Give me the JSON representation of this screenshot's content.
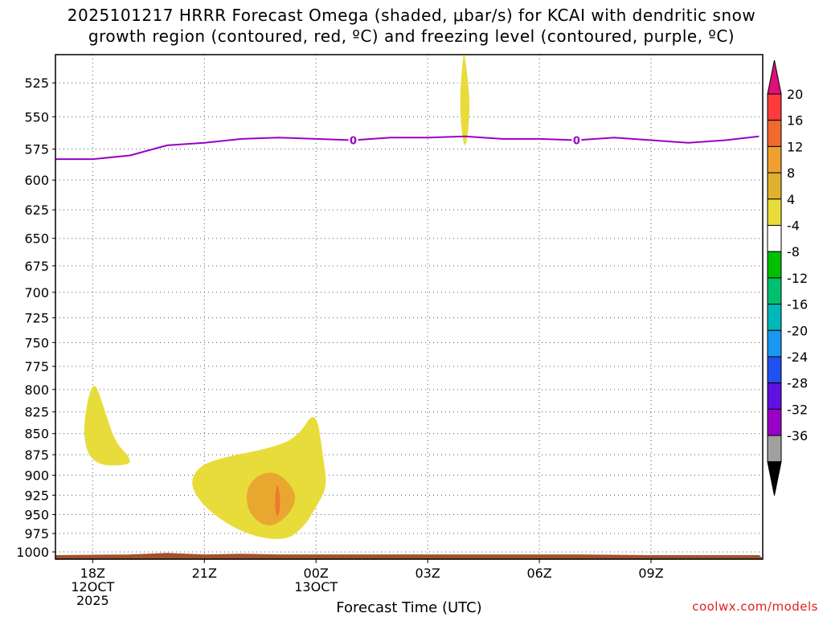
{
  "title": {
    "line1": "2025101217 HRRR Forecast Omega (shaded, μbar/s) for KCAI with dendritic snow",
    "line2": "growth region (contoured, red, ºC) and freezing level (contoured, purple, ºC)"
  },
  "credit": "coolwx.com/models",
  "colors": {
    "freezing_level": "#9a00c8",
    "terrain": "#a0522d",
    "omega_4_8": "#e8dc3a",
    "omega_8_12": "#e8a830",
    "omega_12_16": "#f07830"
  },
  "chart_data": {
    "type": "contour",
    "title": "2025101217 HRRR Forecast Omega (shaded, μbar/s) for KCAI with dendritic snow growth region (contoured, red, ºC) and freezing level (contoured, purple, ºC)",
    "xlabel": "Forecast Time (UTC)",
    "ylabel": "",
    "grid": true,
    "x_ticks": [
      {
        "hour": 18,
        "label": "18Z",
        "label2": "12OCT",
        "label3": "2025"
      },
      {
        "hour": 21,
        "label": "21Z",
        "label2": "",
        "label3": ""
      },
      {
        "hour": 24,
        "label": "00Z",
        "label2": "13OCT",
        "label3": ""
      },
      {
        "hour": 27,
        "label": "03Z",
        "label2": "",
        "label3": ""
      },
      {
        "hour": 30,
        "label": "06Z",
        "label2": "",
        "label3": ""
      },
      {
        "hour": 33,
        "label": "09Z",
        "label2": "",
        "label3": ""
      }
    ],
    "y_ticks": [
      "525",
      "550",
      "575",
      "600",
      "625",
      "650",
      "675",
      "700",
      "725",
      "750",
      "775",
      "800",
      "825",
      "850",
      "875",
      "900",
      "925",
      "950",
      "975",
      "1000"
    ],
    "ylim": [
      1010,
      505
    ],
    "colorbar": {
      "labels": [
        "20",
        "16",
        "12",
        "8",
        "4",
        "-4",
        "-8",
        "-12",
        "-16",
        "-20",
        "-24",
        "-28",
        "-32",
        "-36"
      ],
      "colors": [
        "#ff3a3a",
        "#f06a30",
        "#f0a030",
        "#e0b030",
        "#e8dc3a",
        "#ffffff",
        "#00c000",
        "#00c070",
        "#00b8b8",
        "#1898f0",
        "#2050f0",
        "#6010e0",
        "#9a00c8",
        "#a0a0a0"
      ],
      "top_arrow": "#e0107a",
      "bottom_arrow": "#000000"
    },
    "freezing_level": {
      "contour_value": "0",
      "points": [
        {
          "t": 17.0,
          "p": 583
        },
        {
          "t": 18.0,
          "p": 583
        },
        {
          "t": 19.0,
          "p": 580
        },
        {
          "t": 20.0,
          "p": 572
        },
        {
          "t": 21.0,
          "p": 570
        },
        {
          "t": 22.0,
          "p": 567
        },
        {
          "t": 23.0,
          "p": 566
        },
        {
          "t": 24.0,
          "p": 567
        },
        {
          "t": 25.0,
          "p": 568
        },
        {
          "t": 26.0,
          "p": 566
        },
        {
          "t": 27.0,
          "p": 566
        },
        {
          "t": 28.0,
          "p": 565
        },
        {
          "t": 29.0,
          "p": 567
        },
        {
          "t": 30.0,
          "p": 567
        },
        {
          "t": 31.0,
          "p": 568
        },
        {
          "t": 32.0,
          "p": 566
        },
        {
          "t": 33.0,
          "p": 568
        },
        {
          "t": 34.0,
          "p": 570
        },
        {
          "t": 35.0,
          "p": 568
        },
        {
          "t": 35.9,
          "p": 565
        }
      ],
      "label_positions": [
        {
          "t": 25.0,
          "p": 568
        },
        {
          "t": 31.0,
          "p": 568
        }
      ]
    },
    "omega_regions": [
      {
        "level": "4-8",
        "points": [
          {
            "t": 18.0,
            "p": 785
          },
          {
            "t": 18.3,
            "p": 820
          },
          {
            "t": 18.6,
            "p": 860
          },
          {
            "t": 19.0,
            "p": 878
          },
          {
            "t": 19.0,
            "p": 888
          },
          {
            "t": 18.0,
            "p": 888
          },
          {
            "t": 17.7,
            "p": 850
          }
        ]
      },
      {
        "level": "4-8",
        "points": [
          {
            "t": 24.0,
            "p": 820
          },
          {
            "t": 24.2,
            "p": 880
          },
          {
            "t": 24.3,
            "p": 915
          },
          {
            "t": 24.0,
            "p": 940
          },
          {
            "t": 23.7,
            "p": 965
          },
          {
            "t": 23.2,
            "p": 985
          },
          {
            "t": 22.2,
            "p": 978
          },
          {
            "t": 21.2,
            "p": 950
          },
          {
            "t": 20.6,
            "p": 915
          },
          {
            "t": 20.8,
            "p": 890
          },
          {
            "t": 21.5,
            "p": 878
          },
          {
            "t": 22.7,
            "p": 868
          },
          {
            "t": 23.5,
            "p": 855
          }
        ]
      },
      {
        "level": "4-8",
        "points": [
          {
            "t": 28.0,
            "p": 505
          },
          {
            "t": 28.15,
            "p": 540
          },
          {
            "t": 28.05,
            "p": 572
          },
          {
            "t": 27.95,
            "p": 572
          },
          {
            "t": 27.85,
            "p": 540
          },
          {
            "t": 27.95,
            "p": 505
          }
        ]
      },
      {
        "level": "8-12",
        "points": [
          {
            "t": 22.9,
            "p": 895
          },
          {
            "t": 23.3,
            "p": 910
          },
          {
            "t": 23.5,
            "p": 930
          },
          {
            "t": 23.2,
            "p": 955
          },
          {
            "t": 22.7,
            "p": 968
          },
          {
            "t": 22.2,
            "p": 950
          },
          {
            "t": 22.1,
            "p": 920
          },
          {
            "t": 22.4,
            "p": 900
          }
        ]
      },
      {
        "level": "12-16",
        "points": [
          {
            "t": 22.96,
            "p": 905
          },
          {
            "t": 23.06,
            "p": 935
          },
          {
            "t": 22.96,
            "p": 958
          },
          {
            "t": 22.88,
            "p": 935
          }
        ]
      }
    ],
    "terrain": [
      {
        "t": 17.0,
        "p": 1005
      },
      {
        "t": 19.0,
        "p": 1004
      },
      {
        "t": 20.0,
        "p": 1002
      },
      {
        "t": 21.0,
        "p": 1004
      },
      {
        "t": 22.0,
        "p": 1003
      },
      {
        "t": 23.0,
        "p": 1004
      },
      {
        "t": 25.0,
        "p": 1004
      },
      {
        "t": 28.0,
        "p": 1004
      },
      {
        "t": 31.0,
        "p": 1004
      },
      {
        "t": 33.0,
        "p": 1005
      },
      {
        "t": 35.9,
        "p": 1005
      }
    ]
  }
}
